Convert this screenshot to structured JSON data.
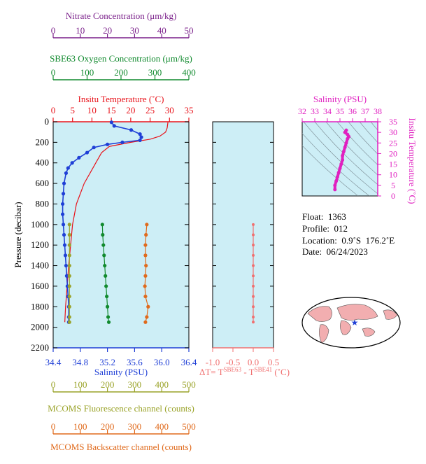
{
  "colors": {
    "nitrate": "#7a1f8a",
    "oxygen": "#118a2e",
    "temperature": "#e8131b",
    "salinity": "#1f3fd6",
    "fluorescence": "#9aa329",
    "backscatter": "#e06a1c",
    "delta": "#f07070",
    "ts": "#e020c0",
    "plot_bg": "#cdeef6"
  },
  "axes": {
    "nitrate": {
      "label": "Nitrate Concentration (μm/kg)",
      "ticks": [
        "0",
        "10",
        "20",
        "30",
        "40",
        "50"
      ],
      "range": [
        0,
        50
      ]
    },
    "oxygen": {
      "label": "SBE63 Oxygen Concentration (μm/kg)",
      "ticks": [
        "0",
        "100",
        "200",
        "300",
        "400"
      ],
      "range": [
        0,
        400
      ]
    },
    "temperature": {
      "label": "Insitu Temperature (˚C)",
      "ticks": [
        "0",
        "5",
        "10",
        "15",
        "20",
        "25",
        "30",
        "35"
      ],
      "range": [
        0,
        35
      ]
    },
    "pressure": {
      "label": "Pressure (decibar)",
      "ticks": [
        "0",
        "200",
        "400",
        "600",
        "800",
        "1000",
        "1200",
        "1400",
        "1600",
        "1800",
        "2000",
        "2200"
      ],
      "range": [
        0,
        2200
      ]
    },
    "salinity": {
      "label": "Salinity (PSU)",
      "ticks": [
        "34.4",
        "34.8",
        "35.2",
        "35.6",
        "36.0",
        "36.4"
      ],
      "range": [
        34.4,
        36.4
      ]
    },
    "fluorescence": {
      "label": "MCOMS Fluorescence channel (counts)",
      "ticks": [
        "0",
        "100",
        "200",
        "300",
        "400",
        "500"
      ],
      "range": [
        0,
        500
      ]
    },
    "backscatter": {
      "label": "MCOMS Backscatter channel (counts)",
      "ticks": [
        "0",
        "100",
        "200",
        "300",
        "400",
        "500"
      ],
      "range": [
        0,
        500
      ]
    },
    "delta": {
      "label_prefix": "ΔT= T",
      "sup1": "SBE63",
      "mid": " - T",
      "sup2": "SBE41",
      "suffix": " (˚C)",
      "ticks": [
        "-1.0",
        "-0.5",
        "0.0",
        "0.5"
      ],
      "range": [
        -1.0,
        0.5
      ]
    },
    "ts_salinity": {
      "label": "Salinity (PSU)",
      "ticks": [
        "32",
        "33",
        "34",
        "35",
        "36",
        "37",
        "38"
      ],
      "range": [
        32,
        38
      ]
    },
    "ts_temperature": {
      "label": "Insitu Temperature (˚C)",
      "ticks": [
        "0",
        "5",
        "10",
        "15",
        "20",
        "25",
        "30",
        "35"
      ],
      "range": [
        0,
        35
      ]
    }
  },
  "info": {
    "float": "Float:  1363",
    "profile": "Profile:  012",
    "location": "Location:  0.9˚S  176.2˚E",
    "date": "Date:  06/24/2023"
  },
  "chart_data": [
    {
      "type": "line",
      "series": [
        {
          "name": "Insitu Temperature",
          "unit": "˚C",
          "pressure": [
            5,
            60,
            100,
            140,
            170,
            200,
            240,
            300,
            400,
            500,
            600,
            700,
            800,
            900,
            1000,
            1200,
            1400,
            1600,
            1800,
            1950
          ],
          "values": [
            29.6,
            29.4,
            29.0,
            27.5,
            25.0,
            20.0,
            14.5,
            12.5,
            11.0,
            9.5,
            8.0,
            7.0,
            6.0,
            5.5,
            5.0,
            4.5,
            4.0,
            3.6,
            3.2,
            3.0
          ]
        },
        {
          "name": "Salinity",
          "unit": "PSU",
          "pressure": [
            5,
            40,
            80,
            120,
            150,
            180,
            200,
            220,
            250,
            300,
            350,
            400,
            450,
            500,
            600,
            700,
            800,
            900,
            1000,
            1100,
            1200,
            1300,
            1400,
            1500,
            1600,
            1700,
            1800,
            1900,
            1950
          ],
          "values": [
            35.26,
            35.3,
            35.55,
            35.68,
            35.7,
            35.68,
            35.42,
            35.2,
            35.0,
            34.9,
            34.78,
            34.68,
            34.62,
            34.59,
            34.56,
            34.55,
            34.54,
            34.54,
            34.55,
            34.56,
            34.57,
            34.58,
            34.59,
            34.6,
            34.61,
            34.62,
            34.63,
            34.63,
            34.63
          ]
        },
        {
          "name": "SBE63 Oxygen",
          "unit": "μm/kg",
          "pressure": [
            1000,
            1100,
            1200,
            1300,
            1400,
            1500,
            1600,
            1700,
            1800,
            1900,
            1950
          ],
          "values": [
            145,
            146,
            148,
            150,
            152,
            154,
            156,
            158,
            160,
            162,
            164
          ]
        },
        {
          "name": "MCOMS Fluorescence",
          "unit": "counts",
          "pressure": [
            1000,
            1100,
            1200,
            1300,
            1400,
            1500,
            1600,
            1700,
            1800,
            1900,
            1950
          ],
          "values": [
            60,
            60,
            60,
            60,
            60,
            60,
            60,
            60,
            60,
            60,
            60
          ]
        },
        {
          "name": "MCOMS Backscatter",
          "unit": "counts",
          "pressure": [
            1000,
            1100,
            1200,
            1300,
            1400,
            1500,
            1600,
            1700,
            1800,
            1900,
            1950
          ],
          "values": [
            345,
            342,
            340,
            340,
            342,
            340,
            338,
            340,
            350,
            345,
            340
          ]
        },
        {
          "name": "ΔT",
          "unit": "˚C",
          "pressure": [
            1000,
            1100,
            1200,
            1300,
            1400,
            1500,
            1600,
            1700,
            1800,
            1900,
            1950
          ],
          "values": [
            0,
            0,
            0,
            0,
            0,
            0,
            0,
            0,
            0,
            0,
            0
          ]
        }
      ],
      "ylim": [
        0,
        2200
      ]
    },
    {
      "type": "scatter",
      "name": "T-S diagram",
      "x": [
        34.6,
        34.6,
        34.7,
        34.8,
        34.9,
        35.0,
        35.1,
        35.2,
        35.2,
        35.3,
        35.4,
        35.5,
        35.6,
        35.7,
        35.6,
        35.4,
        35.5
      ],
      "y": [
        3,
        5,
        7,
        9,
        11,
        13,
        15,
        17,
        19,
        21,
        23,
        25,
        27,
        28,
        29,
        30,
        31
      ],
      "xlim": [
        32,
        38
      ],
      "ylim": [
        0,
        35
      ]
    }
  ]
}
